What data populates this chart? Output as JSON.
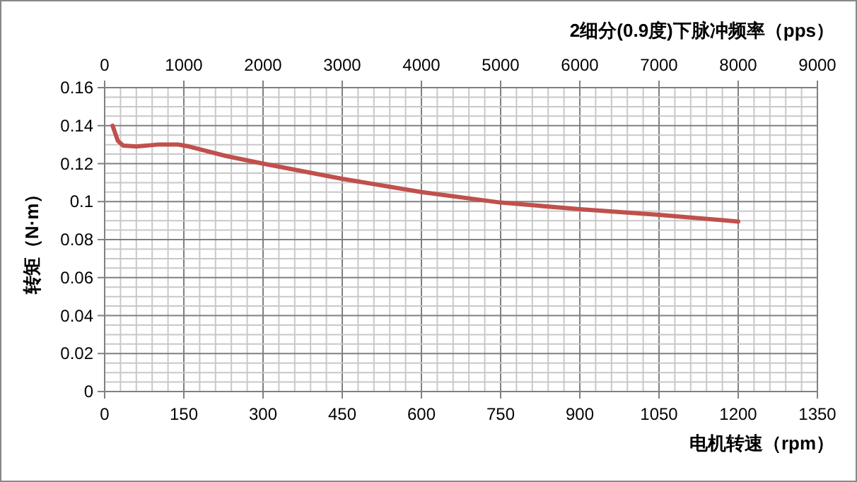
{
  "chart_data": {
    "type": "line",
    "x2label": "2细分(0.9度)下脉冲频率（pps）",
    "xlabel": "电机转速（rpm）",
    "ylabel": "转矩（N·m）",
    "series": [
      {
        "color": "#c0504d",
        "x": [
          15,
          25,
          35,
          60,
          100,
          140,
          160,
          230,
          300,
          450,
          600,
          750,
          900,
          1050,
          1200
        ],
        "values": [
          0.14,
          0.132,
          0.1295,
          0.129,
          0.13,
          0.13,
          0.129,
          0.124,
          0.12,
          0.112,
          0.105,
          0.0995,
          0.096,
          0.093,
          0.0895
        ]
      }
    ],
    "xlim": [
      0,
      1350
    ],
    "xticks": [
      0,
      150,
      300,
      450,
      600,
      750,
      900,
      1050,
      1200,
      1350
    ],
    "x2lim": [
      0,
      9000
    ],
    "x2ticks": [
      0,
      1000,
      2000,
      3000,
      4000,
      5000,
      6000,
      7000,
      8000,
      9000
    ],
    "ylim": [
      0,
      0.16
    ],
    "yticks": [
      0,
      0.02,
      0.04,
      0.06,
      0.08,
      0.1,
      0.12,
      0.14,
      0.16
    ],
    "grid": true,
    "marker": "none",
    "line_style": "solid"
  }
}
